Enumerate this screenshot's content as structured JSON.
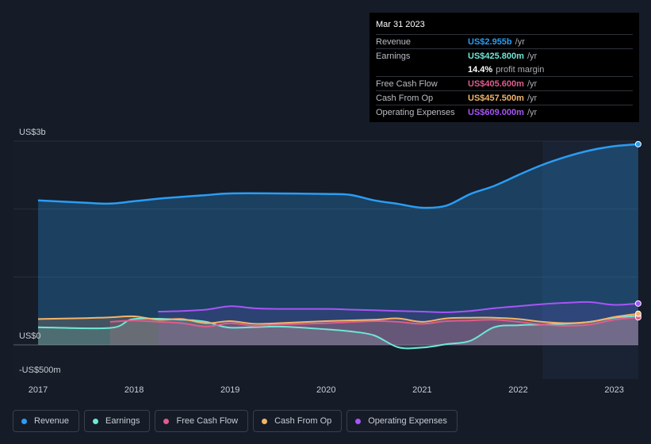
{
  "tooltip": {
    "date": "Mar 31 2023",
    "rows": [
      {
        "label": "Revenue",
        "value": "US$2.955b",
        "unit": "/yr",
        "color": "#2a9df4"
      },
      {
        "label": "Earnings",
        "value": "US$425.800m",
        "unit": "/yr",
        "color": "#6fe7d7"
      },
      {
        "label": "",
        "value": "14.4%",
        "unit": "profit margin",
        "color": "#ffffff"
      },
      {
        "label": "Free Cash Flow",
        "value": "US$405.600m",
        "unit": "/yr",
        "color": "#e05c8c"
      },
      {
        "label": "Cash From Op",
        "value": "US$457.500m",
        "unit": "/yr",
        "color": "#f2b46a"
      },
      {
        "label": "Operating Expenses",
        "value": "US$609.000m",
        "unit": "/yr",
        "color": "#a855f7"
      }
    ]
  },
  "chart_data": {
    "type": "area",
    "x_tick_labels": [
      "2017",
      "2018",
      "2019",
      "2020",
      "2021",
      "2022",
      "2023"
    ],
    "y_tick_labels": {
      "top": "US$3b",
      "zero": "US$0",
      "bottom": "-US$500m"
    },
    "ylim": [
      -500,
      3000
    ],
    "grid": true,
    "legend_position": "bottom",
    "series": [
      {
        "name": "Revenue",
        "color": "#2a9df4",
        "points": [
          [
            2017.0,
            2127
          ],
          [
            2017.5,
            2092
          ],
          [
            2017.75,
            2080
          ],
          [
            2018.0,
            2115
          ],
          [
            2018.25,
            2152
          ],
          [
            2018.5,
            2180
          ],
          [
            2018.75,
            2205
          ],
          [
            2019.0,
            2230
          ],
          [
            2019.5,
            2230
          ],
          [
            2020.0,
            2222
          ],
          [
            2020.25,
            2210
          ],
          [
            2020.5,
            2128
          ],
          [
            2020.75,
            2075
          ],
          [
            2021.0,
            2020
          ],
          [
            2021.25,
            2050
          ],
          [
            2021.5,
            2220
          ],
          [
            2021.75,
            2340
          ],
          [
            2022.0,
            2500
          ],
          [
            2022.25,
            2650
          ],
          [
            2022.5,
            2770
          ],
          [
            2022.75,
            2865
          ],
          [
            2023.0,
            2925
          ],
          [
            2023.25,
            2955
          ]
        ]
      },
      {
        "name": "Earnings",
        "color": "#6fe7d7",
        "points": [
          [
            2017.0,
            260
          ],
          [
            2017.75,
            250
          ],
          [
            2018.0,
            380
          ],
          [
            2018.5,
            370
          ],
          [
            2018.75,
            340
          ],
          [
            2019.0,
            255
          ],
          [
            2019.5,
            270
          ],
          [
            2020.0,
            230
          ],
          [
            2020.25,
            200
          ],
          [
            2020.5,
            140
          ],
          [
            2020.75,
            -35
          ],
          [
            2021.0,
            -40
          ],
          [
            2021.25,
            10
          ],
          [
            2021.5,
            60
          ],
          [
            2021.75,
            260
          ],
          [
            2022.0,
            290
          ],
          [
            2022.25,
            300
          ],
          [
            2022.5,
            310
          ],
          [
            2022.75,
            340
          ],
          [
            2023.0,
            400
          ],
          [
            2023.25,
            426
          ]
        ]
      },
      {
        "name": "Free Cash Flow",
        "color": "#e05c8c",
        "points": [
          [
            2017.75,
            340
          ],
          [
            2018.0,
            360
          ],
          [
            2018.25,
            340
          ],
          [
            2018.5,
            320
          ],
          [
            2018.75,
            270
          ],
          [
            2019.0,
            320
          ],
          [
            2019.25,
            280
          ],
          [
            2019.5,
            300
          ],
          [
            2020.0,
            320
          ],
          [
            2020.5,
            350
          ],
          [
            2020.75,
            340
          ],
          [
            2021.0,
            310
          ],
          [
            2021.25,
            350
          ],
          [
            2021.5,
            360
          ],
          [
            2021.75,
            370
          ],
          [
            2022.0,
            340
          ],
          [
            2022.25,
            300
          ],
          [
            2022.5,
            280
          ],
          [
            2022.75,
            300
          ],
          [
            2023.0,
            370
          ],
          [
            2023.25,
            406
          ]
        ]
      },
      {
        "name": "Cash From Op",
        "color": "#f2b46a",
        "points": [
          [
            2017.0,
            380
          ],
          [
            2017.5,
            395
          ],
          [
            2017.75,
            405
          ],
          [
            2018.0,
            420
          ],
          [
            2018.25,
            370
          ],
          [
            2018.5,
            380
          ],
          [
            2018.75,
            320
          ],
          [
            2019.0,
            350
          ],
          [
            2019.25,
            310
          ],
          [
            2019.5,
            320
          ],
          [
            2020.0,
            350
          ],
          [
            2020.5,
            370
          ],
          [
            2020.75,
            390
          ],
          [
            2021.0,
            340
          ],
          [
            2021.25,
            390
          ],
          [
            2021.5,
            400
          ],
          [
            2021.75,
            400
          ],
          [
            2022.0,
            380
          ],
          [
            2022.25,
            340
          ],
          [
            2022.5,
            320
          ],
          [
            2022.75,
            340
          ],
          [
            2023.0,
            410
          ],
          [
            2023.25,
            458
          ]
        ]
      },
      {
        "name": "Operating Expenses",
        "color": "#a855f7",
        "points": [
          [
            2018.25,
            490
          ],
          [
            2018.5,
            500
          ],
          [
            2018.75,
            520
          ],
          [
            2019.0,
            570
          ],
          [
            2019.25,
            540
          ],
          [
            2019.5,
            530
          ],
          [
            2020.0,
            530
          ],
          [
            2020.25,
            520
          ],
          [
            2020.5,
            510
          ],
          [
            2020.75,
            500
          ],
          [
            2021.0,
            490
          ],
          [
            2021.25,
            480
          ],
          [
            2021.5,
            500
          ],
          [
            2021.75,
            540
          ],
          [
            2022.0,
            570
          ],
          [
            2022.25,
            600
          ],
          [
            2022.5,
            620
          ],
          [
            2022.75,
            630
          ],
          [
            2023.0,
            590
          ],
          [
            2023.25,
            609
          ]
        ]
      }
    ]
  }
}
